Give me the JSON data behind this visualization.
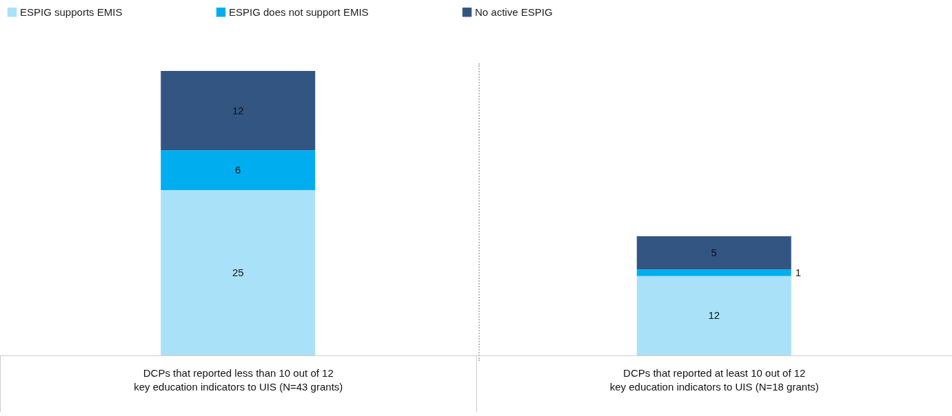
{
  "chart_data": {
    "type": "bar",
    "stacked": true,
    "data_labels": true,
    "legend": "top left",
    "categories": [
      "DCPs that reported less than 10 out of 12\nkey education indicators to UIS (N=43 grants)",
      "DCPs that reported at least 10 out of 12\nkey education indicators to UIS (N=18 grants)"
    ],
    "series": [
      {
        "name": "ESPIG supports EMIS",
        "color": "#a9e1f9",
        "values": [
          25,
          12
        ]
      },
      {
        "name": "ESPIG does not support EMIS",
        "color": "#00aeef",
        "values": [
          6,
          1
        ]
      },
      {
        "name": "No active ESPIG",
        "color": "#335582",
        "values": [
          12,
          5
        ]
      }
    ]
  }
}
